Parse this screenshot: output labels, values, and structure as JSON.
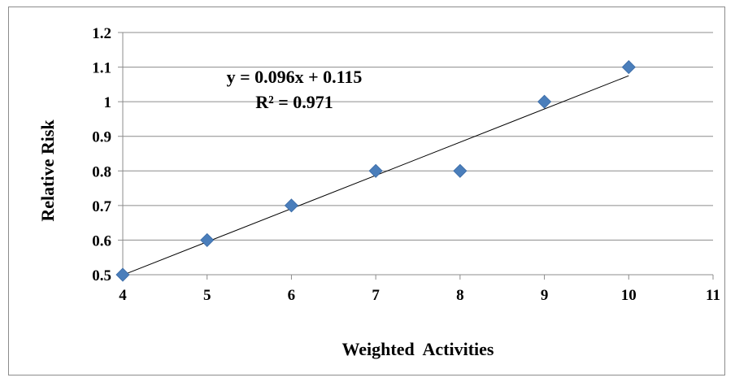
{
  "chart_data": {
    "type": "scatter",
    "x": [
      4,
      5,
      6,
      7,
      8,
      9,
      10
    ],
    "y": [
      0.5,
      0.6,
      0.7,
      0.8,
      0.8,
      1.0,
      1.1
    ],
    "xlabel": "Weighted  Activities",
    "ylabel": "Relative Risk",
    "xlim": [
      4,
      11
    ],
    "ylim": [
      0.5,
      1.2
    ],
    "x_ticks": [
      "4",
      "5",
      "6",
      "7",
      "8",
      "9",
      "10",
      "11"
    ],
    "y_ticks": [
      "0.5",
      "0.6",
      "0.7",
      "0.8",
      "0.9",
      "1",
      "1.1",
      "1.2"
    ],
    "grid": "horizontal",
    "marker": "diamond",
    "marker_color": "#4a7ebb",
    "trendline": {
      "type": "linear",
      "slope": 0.096,
      "intercept": 0.115,
      "x_range": [
        4,
        10
      ],
      "color": "#000000",
      "equation": "y = 0.096x + 0.115",
      "r_squared": "R² = 0.971"
    }
  }
}
